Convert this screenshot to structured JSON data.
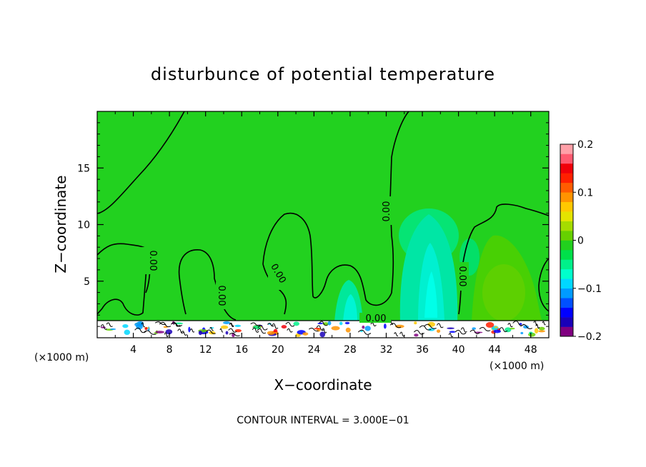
{
  "chart_data": {
    "type": "heatmap",
    "title": "disturbunce of potential temperature",
    "xlabel": "X−coordinate",
    "ylabel": "Z−coordinate",
    "x_unit_left": "(×1000 m)",
    "x_unit_right": "(×1000 m)",
    "xlim": [
      0,
      50
    ],
    "ylim": [
      0,
      20
    ],
    "x_ticks": [
      4,
      8,
      12,
      16,
      20,
      24,
      28,
      32,
      36,
      40,
      44,
      48
    ],
    "y_ticks": [
      5,
      10,
      15
    ],
    "colorbar": {
      "range": [
        -0.2,
        0.2
      ],
      "ticks": [
        0.2,
        0.1,
        0,
        -0.1,
        -0.2
      ],
      "tick_labels": [
        "0.2",
        "0.1",
        "0",
        "−0.1",
        "−0.2"
      ],
      "colors": [
        "#800080",
        "#1a00b8",
        "#0000ff",
        "#0050ff",
        "#009bff",
        "#00d8ff",
        "#00ffcc",
        "#00f08a",
        "#00e04a",
        "#22d01e",
        "#66d000",
        "#a5dc00",
        "#e4e400",
        "#ffc800",
        "#ff9400",
        "#ff5c00",
        "#ff2000",
        "#f0000a",
        "#ff5a70",
        "#ffa0a8"
      ]
    },
    "contour_label": "0.00",
    "contour_interval": "CONTOUR INTERVAL = 3.000E−01",
    "background_value": 0,
    "features": [
      {
        "kind": "cool_plume",
        "x": 37,
        "z_top": 11,
        "min": -0.06
      },
      {
        "kind": "cool_plume",
        "x": 28,
        "z_top": 5,
        "min": -0.05
      },
      {
        "kind": "warm_region",
        "x": 44,
        "z_top": 9,
        "max": 0.02
      },
      {
        "kind": "turbulent_boundary_layer",
        "z_top": 1.5
      }
    ]
  }
}
